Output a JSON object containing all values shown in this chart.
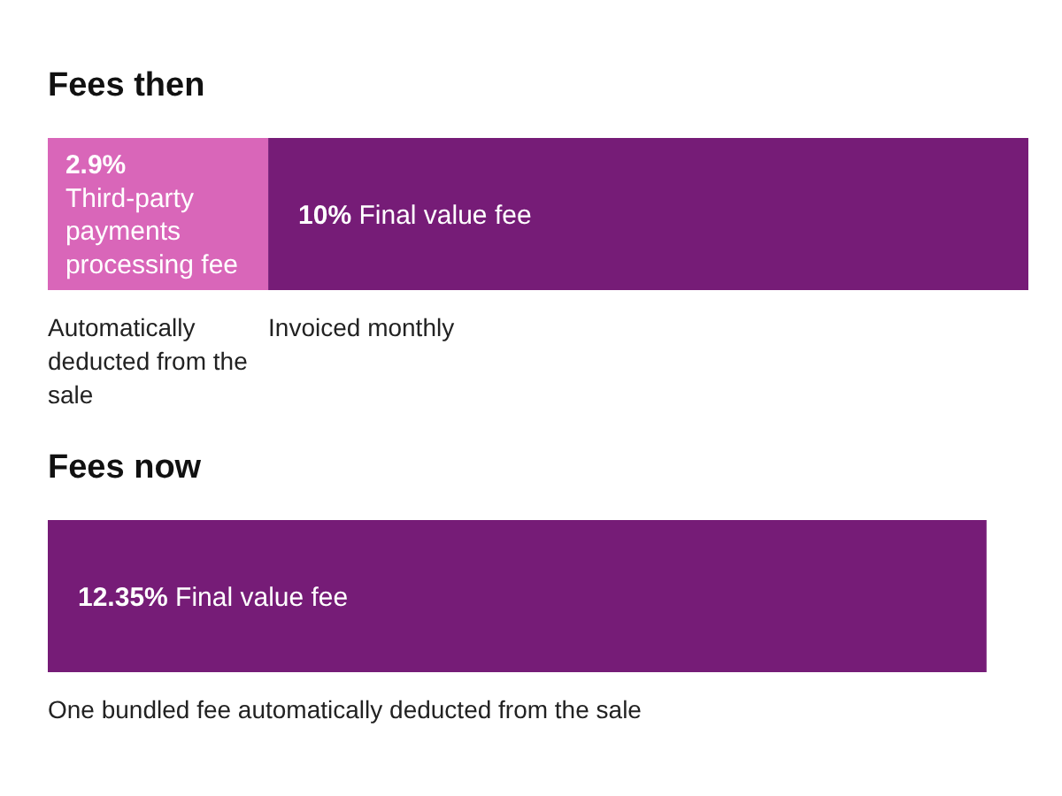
{
  "chart_data": {
    "type": "bar",
    "orientation": "horizontal",
    "stacked": true,
    "categories": [
      "Fees then",
      "Fees now"
    ],
    "tick_labels": "y",
    "series": [
      {
        "name": "Third-party payments processing fee",
        "color": "#d966b9",
        "values": [
          2.9,
          null
        ],
        "value_labels": [
          "2.9%",
          null
        ]
      },
      {
        "name": "Final value fee",
        "color": "#761c77",
        "values": [
          10,
          12.35
        ],
        "value_labels": [
          "10%",
          "12.35%"
        ]
      }
    ],
    "annotations": [
      "Automatically deducted from the sale",
      "Invoiced monthly",
      "One bundled fee automatically deducted from the sale"
    ]
  }
}
